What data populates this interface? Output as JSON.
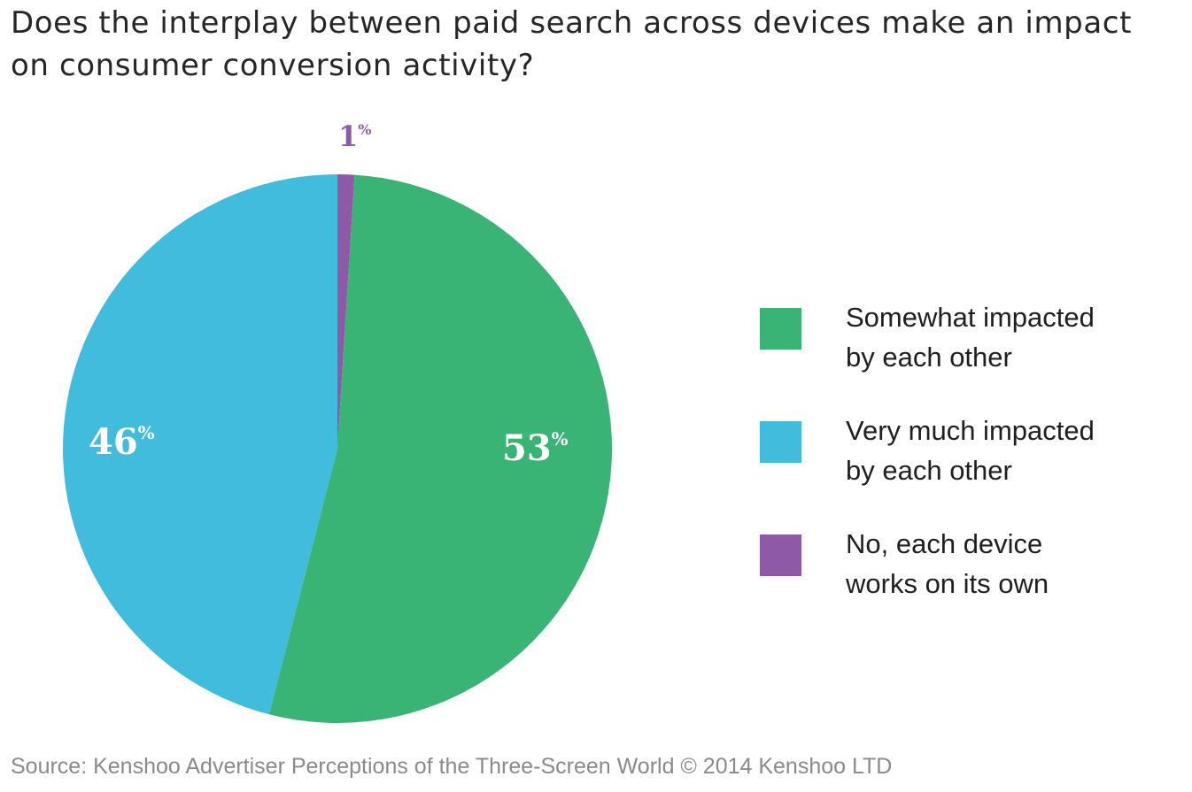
{
  "title": "Does the interplay between paid search across devices make an impact on consumer conversion activity?",
  "source": "Source: Kenshoo Advertiser Perceptions of the Three-Screen World © 2014 Kenshoo LTD",
  "colors": {
    "green": "#39b474",
    "blue": "#41bcdc",
    "purple": "#8e59a6"
  },
  "chart_data": {
    "type": "pie",
    "title": "Does the interplay between paid search across devices make an impact on consumer conversion activity?",
    "slices": [
      {
        "label": "Somewhat impacted by each other",
        "value": 53,
        "display": "53",
        "unit": "%",
        "color": "#39b474"
      },
      {
        "label": "Very much impacted by each other",
        "value": 46,
        "display": "46",
        "unit": "%",
        "color": "#41bcdc"
      },
      {
        "label": "No, each device works on its own",
        "value": 1,
        "display": "1",
        "unit": "%",
        "color": "#8e59a6"
      }
    ],
    "start": "12 o'clock",
    "direction": "clockwise",
    "legend_position": "right"
  },
  "legend": [
    {
      "line1": "Somewhat impacted",
      "line2": "by each other",
      "color": "#39b474"
    },
    {
      "line1": "Very much impacted",
      "line2": "by each other",
      "color": "#41bcdc"
    },
    {
      "line1": "No, each device",
      "line2": "works on its own",
      "color": "#8e59a6"
    }
  ]
}
